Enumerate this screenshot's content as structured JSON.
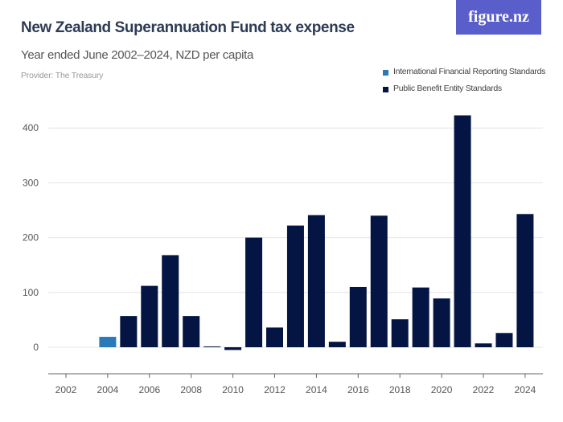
{
  "title": "New Zealand Superannuation Fund tax expense",
  "subtitle": "Year ended June 2002–2024, NZD per capita",
  "provider": "Provider: The Treasury",
  "logo": "figure.nz",
  "chart_data": {
    "type": "bar",
    "categories": [
      "2002",
      "2003",
      "2004",
      "2005",
      "2006",
      "2007",
      "2008",
      "2009",
      "2010",
      "2011",
      "2012",
      "2013",
      "2014",
      "2015",
      "2016",
      "2017",
      "2018",
      "2019",
      "2020",
      "2021",
      "2022",
      "2023",
      "2024"
    ],
    "series": [
      {
        "name": "International Financial Reporting Standards",
        "color": "#2a7ab9",
        "values": [
          null,
          null,
          19,
          null,
          null,
          null,
          null,
          null,
          null,
          null,
          null,
          null,
          null,
          null,
          null,
          null,
          null,
          null,
          null,
          null,
          null,
          null,
          null
        ]
      },
      {
        "name": "Public Benefit Entity Standards",
        "color": "#041443",
        "values": [
          null,
          null,
          null,
          57,
          112,
          168,
          57,
          1.5,
          -5,
          200,
          36,
          222,
          241,
          10,
          110,
          240,
          51,
          109,
          89,
          423,
          7,
          26,
          243
        ]
      }
    ],
    "ylim": [
      -40,
      440
    ],
    "yticks": [
      0,
      100,
      200,
      300,
      400
    ],
    "xticks": [
      "2002",
      "2004",
      "2006",
      "2008",
      "2010",
      "2012",
      "2014",
      "2016",
      "2018",
      "2020",
      "2022",
      "2024"
    ],
    "grid": true,
    "legend_position": "top-right",
    "xlabel": "",
    "ylabel": ""
  }
}
